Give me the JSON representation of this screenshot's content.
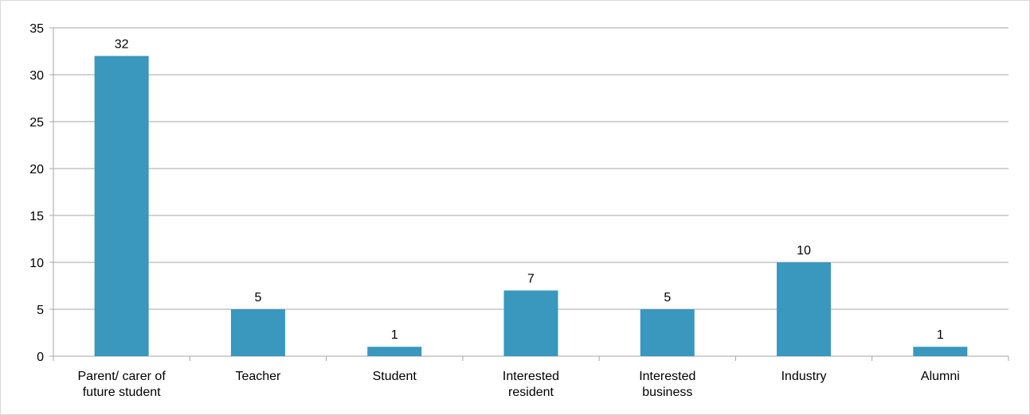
{
  "chart_data": {
    "type": "bar",
    "categories": [
      [
        "Parent/ carer of",
        "future student"
      ],
      [
        "Teacher"
      ],
      [
        "Student"
      ],
      [
        "Interested",
        "resident"
      ],
      [
        "Interested",
        "business"
      ],
      [
        "Industry"
      ],
      [
        "Alumni"
      ]
    ],
    "values": [
      32,
      5,
      1,
      7,
      5,
      10,
      1
    ],
    "data_labels": [
      "32",
      "5",
      "1",
      "7",
      "5",
      "10",
      "1"
    ],
    "title": "",
    "xlabel": "",
    "ylabel": "",
    "ylim": [
      0,
      35
    ],
    "yticks": [
      0,
      5,
      10,
      15,
      20,
      25,
      30,
      35
    ],
    "grid": true,
    "legend": "none",
    "colors": {
      "bar": "#3a97bd",
      "grid": "#a6a6a6",
      "axis": "#a6a6a6",
      "frame": "#d9d9d9"
    }
  }
}
